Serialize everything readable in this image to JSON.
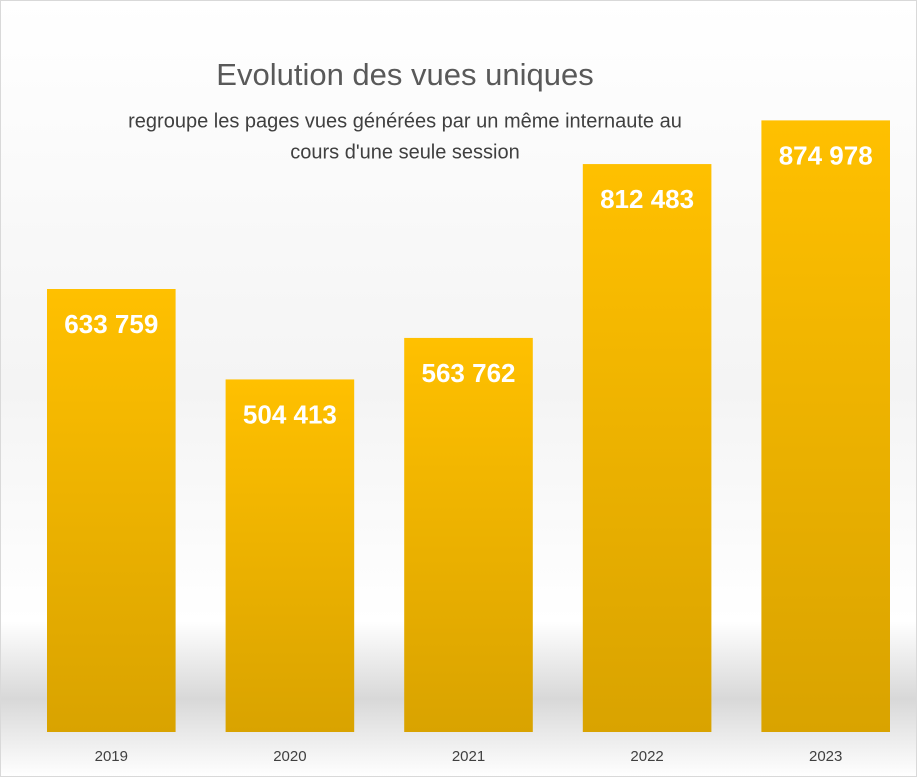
{
  "chart_data": {
    "type": "bar",
    "title": "Evolution des vues uniques",
    "subtitle": [
      "regroupe les pages vues générées par un même internaute au",
      "cours d'une seule session"
    ],
    "categories": [
      "2019",
      "2020",
      "2021",
      "2022",
      "2023"
    ],
    "values": [
      633759,
      504413,
      563762,
      812483,
      874978
    ],
    "value_labels": [
      "633 759",
      "504 413",
      "563 762",
      "812 483",
      "874 978"
    ],
    "color": "#ffc000",
    "ylim": [
      0,
      1000000
    ]
  }
}
